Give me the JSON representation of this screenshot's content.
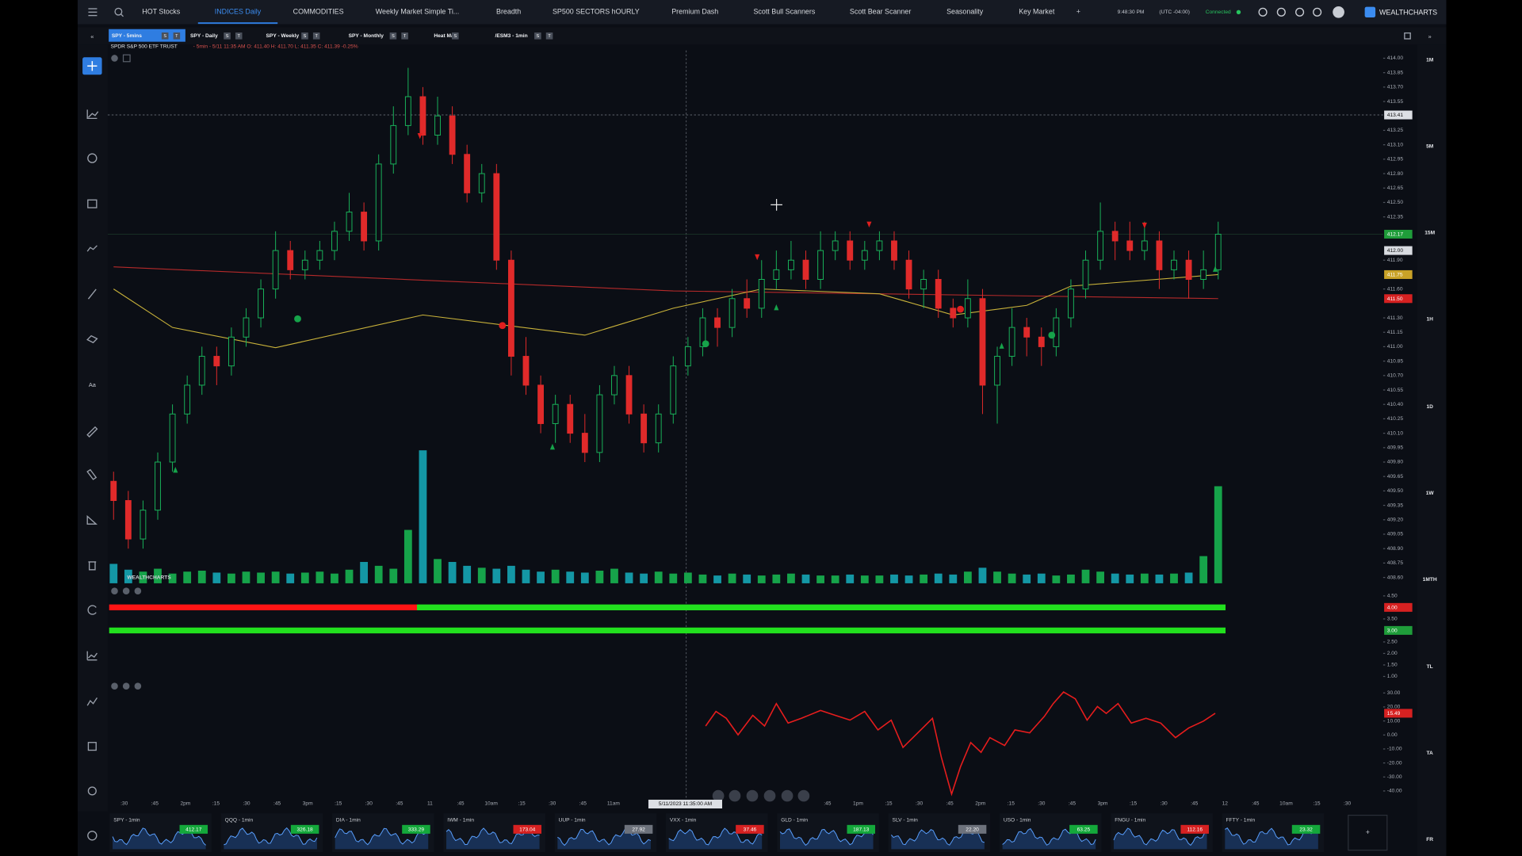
{
  "top_nav": {
    "tabs": [
      {
        "label": "HOT Stocks"
      },
      {
        "label": "INDICES Daily",
        "active": true
      },
      {
        "label": "COMMODITIES"
      },
      {
        "label": "Weekly Market Simple Ti..."
      },
      {
        "label": "Breadth"
      },
      {
        "label": "SP500 SECTORS hOURLY"
      },
      {
        "label": "Premium Dash"
      },
      {
        "label": "Scott Bull Scanners"
      },
      {
        "label": "Scott Bear Scanner"
      },
      {
        "label": "Seasonality"
      },
      {
        "label": "Key Market"
      }
    ],
    "add": "+",
    "time": "9:48:30 PM",
    "timezone": "(UTC -04:00)",
    "status": "Connected",
    "brand": "WEALTHCHARTS"
  },
  "chart_tabs": [
    {
      "label": "SPY - 5mins",
      "buttons": [
        "S",
        "T"
      ],
      "active": true
    },
    {
      "label": "SPY - Daily",
      "buttons": [
        "S",
        "T"
      ]
    },
    {
      "label": "SPY - Weekly",
      "buttons": [
        "S",
        "T"
      ]
    },
    {
      "label": "SPY - Monthly",
      "buttons": [
        "S",
        "T"
      ]
    },
    {
      "label": "Heat Map",
      "buttons": [
        "S"
      ]
    },
    {
      "label": "/ESM3 - 1min",
      "buttons": [
        "S",
        "T"
      ]
    }
  ],
  "symbol": {
    "name": "SPDR S&P 500 ETF TRUST",
    "details": "- 5min - 5/11 11:35 AM O: 411.40 H: 411.70 L: 411.35 C: 411.39 -0.25%"
  },
  "chart_data": [
    {
      "type": "candlestick",
      "ylim": [
        408.6,
        414.0
      ],
      "yticks": [
        {
          "value": 414,
          "label": "414.00"
        },
        413.85,
        {
          "value": 413.7,
          "label": "413.70"
        },
        413.55,
        413.25,
        {
          "value": 413.1,
          "label": "413.10"
        },
        412.95,
        {
          "value": 412.8,
          "label": "412.80"
        },
        412.65,
        {
          "value": 412.5,
          "label": "412.50"
        },
        412.35,
        {
          "value": 411.9,
          "label": "411.90"
        },
        {
          "value": 411.6,
          "label": "411.60"
        },
        {
          "value": 411.3,
          "label": "411.30"
        },
        411.15,
        {
          "value": 411,
          "label": "411.00"
        },
        410.85,
        {
          "value": 410.7,
          "label": "410.70"
        },
        410.55,
        {
          "value": 410.4,
          "label": "410.40"
        },
        410.25,
        {
          "value": 410.1,
          "label": "410.10"
        },
        409.95,
        {
          "value": 409.8,
          "label": "409.80"
        },
        409.65,
        {
          "value": 409.5,
          "label": "409.50"
        },
        409.35,
        {
          "value": 409.2,
          "label": "409.20"
        },
        409.05,
        {
          "value": 408.9,
          "label": "408.90"
        },
        408.75,
        {
          "value": 408.6,
          "label": "408.60"
        }
      ],
      "crosshair_price": 413.41,
      "last_price": 412.17,
      "price_badges": [
        {
          "value": 412,
          "label": "412.00",
          "color": "#d8dbe0"
        },
        {
          "value": 411.75,
          "color": "#c9a227"
        },
        {
          "value": 411.5,
          "label": "411.50",
          "color": "#d62121"
        }
      ],
      "up_color": "#19b35a",
      "down_color": "#e02a2a",
      "volume_up_color": "#16a34a",
      "volume_down_color": "#1497a5",
      "candles": [
        [
          409.6,
          409.7,
          409.2,
          409.4
        ],
        [
          409.4,
          409.5,
          408.9,
          409.0
        ],
        [
          409.0,
          409.4,
          408.9,
          409.3
        ],
        [
          409.3,
          409.9,
          409.2,
          409.8
        ],
        [
          409.8,
          410.4,
          409.7,
          410.3
        ],
        [
          410.3,
          410.7,
          410.2,
          410.6
        ],
        [
          410.6,
          411.0,
          410.5,
          410.9
        ],
        [
          410.9,
          411.0,
          410.6,
          410.8
        ],
        [
          410.8,
          411.2,
          410.7,
          411.1
        ],
        [
          411.1,
          411.4,
          411.0,
          411.3
        ],
        [
          411.3,
          411.7,
          411.2,
          411.6
        ],
        [
          411.6,
          412.2,
          411.5,
          412.0
        ],
        [
          412.0,
          412.1,
          411.7,
          411.8
        ],
        [
          411.8,
          412.0,
          411.7,
          411.9
        ],
        [
          411.9,
          412.1,
          411.8,
          412.0
        ],
        [
          412.0,
          412.3,
          411.9,
          412.2
        ],
        [
          412.2,
          412.6,
          412.1,
          412.4
        ],
        [
          412.4,
          412.5,
          412.0,
          412.1
        ],
        [
          412.1,
          413.0,
          412.0,
          412.9
        ],
        [
          412.9,
          413.5,
          412.8,
          413.3
        ],
        [
          413.3,
          413.9,
          413.2,
          413.6
        ],
        [
          413.6,
          413.7,
          413.1,
          413.2
        ],
        [
          413.2,
          413.6,
          413.1,
          413.4
        ],
        [
          413.4,
          413.5,
          412.9,
          413.0
        ],
        [
          413.0,
          413.1,
          412.5,
          412.6
        ],
        [
          412.6,
          412.9,
          412.5,
          412.8
        ],
        [
          412.8,
          412.9,
          411.8,
          411.9
        ],
        [
          411.9,
          412.0,
          410.7,
          410.9
        ],
        [
          410.9,
          411.1,
          410.5,
          410.6
        ],
        [
          410.6,
          410.7,
          410.1,
          410.2
        ],
        [
          410.2,
          410.5,
          410.0,
          410.4
        ],
        [
          410.4,
          410.5,
          410.0,
          410.1
        ],
        [
          410.1,
          410.3,
          409.8,
          409.9
        ],
        [
          409.9,
          410.6,
          409.8,
          410.5
        ],
        [
          410.5,
          410.8,
          410.4,
          410.7
        ],
        [
          410.7,
          410.8,
          410.2,
          410.3
        ],
        [
          410.3,
          410.4,
          409.9,
          410.0
        ],
        [
          410.0,
          410.4,
          409.9,
          410.3
        ],
        [
          410.3,
          410.9,
          410.2,
          410.8
        ],
        [
          410.8,
          411.1,
          410.7,
          411.0
        ],
        [
          411.0,
          411.4,
          410.9,
          411.3
        ],
        [
          411.3,
          411.4,
          411.0,
          411.2
        ],
        [
          411.2,
          411.6,
          411.1,
          411.5
        ],
        [
          411.5,
          411.7,
          411.3,
          411.4
        ],
        [
          411.4,
          411.9,
          411.3,
          411.7
        ],
        [
          411.7,
          412.0,
          411.6,
          411.8
        ],
        [
          411.8,
          412.1,
          411.7,
          411.9
        ],
        [
          411.9,
          412.0,
          411.6,
          411.7
        ],
        [
          411.7,
          412.2,
          411.6,
          412.0
        ],
        [
          412.0,
          412.2,
          411.9,
          412.1
        ],
        [
          412.1,
          412.2,
          411.8,
          411.9
        ],
        [
          411.9,
          412.1,
          411.8,
          412.0
        ],
        [
          412.0,
          412.2,
          411.9,
          412.1
        ],
        [
          412.1,
          412.2,
          411.8,
          411.9
        ],
        [
          411.9,
          412.0,
          411.5,
          411.6
        ],
        [
          411.6,
          411.8,
          411.4,
          411.7
        ],
        [
          411.7,
          411.8,
          411.3,
          411.4
        ],
        [
          411.4,
          411.5,
          411.2,
          411.3
        ],
        [
          411.3,
          411.7,
          411.2,
          411.5
        ],
        [
          411.5,
          411.6,
          410.3,
          410.6
        ],
        [
          410.6,
          411.0,
          410.2,
          410.9
        ],
        [
          410.9,
          411.4,
          410.8,
          411.2
        ],
        [
          411.2,
          411.3,
          410.9,
          411.1
        ],
        [
          411.1,
          411.2,
          410.8,
          411.0
        ],
        [
          411.0,
          411.4,
          410.9,
          411.3
        ],
        [
          411.3,
          411.7,
          411.2,
          411.6
        ],
        [
          411.6,
          412.0,
          411.5,
          411.9
        ],
        [
          411.9,
          412.5,
          411.8,
          412.2
        ],
        [
          412.2,
          412.3,
          411.9,
          412.1
        ],
        [
          412.1,
          412.3,
          411.9,
          412.0
        ],
        [
          412.0,
          412.3,
          411.9,
          412.1
        ],
        [
          412.1,
          412.2,
          411.6,
          411.8
        ],
        [
          411.8,
          412.0,
          411.7,
          411.9
        ],
        [
          411.9,
          412.0,
          411.5,
          411.7
        ],
        [
          411.7,
          412.0,
          411.6,
          411.8
        ],
        [
          411.8,
          412.3,
          411.7,
          412.17
        ]
      ],
      "volume": [
        20,
        14,
        12,
        15,
        10,
        12,
        13,
        11,
        10,
        12,
        11,
        12,
        10,
        11,
        12,
        10,
        14,
        22,
        18,
        15,
        55,
        137,
        25,
        22,
        18,
        16,
        15,
        18,
        14,
        12,
        14,
        12,
        11,
        13,
        15,
        11,
        10,
        12,
        10,
        11,
        9,
        8,
        10,
        9,
        8,
        9,
        10,
        9,
        8,
        8,
        9,
        8,
        8,
        9,
        8,
        9,
        10,
        9,
        12,
        16,
        12,
        10,
        9,
        10,
        8,
        9,
        14,
        12,
        10,
        9,
        10,
        9,
        10,
        11,
        28,
        100
      ],
      "ma_fast": {
        "color": "#c9b23a",
        "x": [
          0,
          4,
          11,
          21,
          32,
          38,
          44,
          52,
          57,
          62,
          65,
          75
        ],
        "values": [
          411.6,
          411.2,
          410.99,
          411.33,
          411.12,
          411.4,
          411.6,
          411.55,
          411.33,
          411.43,
          411.63,
          411.75
        ]
      },
      "ma_slow": {
        "color": "#b52a2a",
        "x": [
          0,
          38,
          75
        ],
        "values": [
          411.83,
          411.58,
          411.5
        ]
      },
      "dots_up": {
        "color": "#16a34a",
        "x": [
          12.5,
          40.2,
          63.7
        ],
        "values": [
          411.29,
          411.03,
          411.12
        ]
      },
      "dots_down": {
        "color": "#e01f1f",
        "x": [
          26.4,
          57.5
        ],
        "values": [
          411.22,
          411.39
        ]
      },
      "arrows_up": {
        "color": "#16a34a",
        "x": [
          4.2,
          29.8,
          45.0,
          60.3,
          74.8
        ],
        "values": [
          409.72,
          409.96,
          411.41,
          411.01,
          411.81
        ]
      },
      "arrows_down": {
        "color": "#e01f1f",
        "x": [
          20.8,
          43.7,
          51.3,
          70.0
        ],
        "values": [
          413.19,
          411.93,
          412.27,
          412.26
        ]
      }
    },
    {
      "type": "strip",
      "ylim": [
        1,
        4.5
      ],
      "yticks": [
        {
          "value": 4.5,
          "label": "4.50"
        },
        {
          "value": 3.5,
          "label": "3.50"
        },
        {
          "value": 2.5,
          "label": "2.50"
        },
        {
          "value": 2,
          "label": "2.00"
        },
        {
          "value": 1.5,
          "label": "1.50"
        },
        {
          "value": 1,
          "label": "1.00"
        }
      ],
      "badges": [
        {
          "value": 4,
          "label": "4.00",
          "color": "#d62121"
        },
        {
          "value": 3,
          "label": "3.00",
          "color": "#1f9d3a"
        }
      ],
      "strips": [
        {
          "color": "#ff1414",
          "x": [
            -0.3,
            20.6
          ],
          "values": [
            4,
            4
          ]
        },
        {
          "color": "#22e01e",
          "x": [
            20.6,
            75.5
          ],
          "values": [
            4,
            4
          ]
        },
        {
          "color": "#22e01e",
          "x": [
            -0.3,
            75.5
          ],
          "values": [
            3,
            3
          ]
        }
      ]
    },
    {
      "type": "line",
      "ylim": [
        -40,
        30
      ],
      "color": "#e61d1d",
      "yticks": [
        {
          "value": 30,
          "label": "30.00"
        },
        {
          "value": 20,
          "label": "20.00"
        },
        {
          "value": 10,
          "label": "10.00"
        },
        {
          "value": 0,
          "label": "0.00"
        },
        {
          "value": -10,
          "label": "-10.00"
        },
        {
          "value": -20,
          "label": "-20.00"
        },
        {
          "value": -30,
          "label": "-30.00"
        },
        {
          "value": -40,
          "label": "-40.00"
        }
      ],
      "last_value": 15.49,
      "x": [
        40.2,
        40.9,
        41.6,
        42.4,
        43.4,
        44.2,
        45.0,
        45.8,
        46.7,
        48.0,
        49.0,
        50.0,
        51.0,
        51.9,
        52.8,
        53.6,
        54.6,
        55.6,
        56.2,
        56.9,
        57.5,
        58.2,
        58.9,
        59.5,
        60.5,
        61.2,
        62.2,
        63.2,
        63.8,
        64.5,
        65.3,
        66.1,
        66.8,
        67.4,
        68.2,
        69.1,
        70.1,
        71.1,
        72.1,
        73.0,
        74.0,
        74.8
      ],
      "values": [
        6.4,
        16.8,
        11.9,
        0.1,
        14.0,
        6.4,
        22.4,
        8.5,
        11.9,
        17.5,
        14.0,
        10.6,
        16.8,
        3.6,
        10.6,
        -8.9,
        1.5,
        11.9,
        -15.8,
        -42.2,
        -22.8,
        -5.4,
        -12.4,
        -1.9,
        -7.5,
        3.6,
        1.5,
        13.3,
        22.4,
        30.7,
        25.8,
        10.6,
        20.3,
        15.4,
        22.4,
        8.5,
        11.9,
        8.5,
        -1.9,
        5.0,
        9.9,
        15.49
      ]
    }
  ],
  "time_axis": {
    "labels": [
      ":30",
      ":45",
      "2pm",
      ":15",
      ":30",
      ":45",
      "3pm",
      ":15",
      ":30",
      ":45",
      "11",
      ":45",
      "10am",
      ":15",
      ":30",
      ":45",
      "11am",
      null,
      null,
      null,
      null,
      null,
      null,
      ":45",
      "1pm",
      ":15",
      ":30",
      ":45",
      "2pm",
      ":15",
      ":30",
      ":45",
      "3pm",
      ":15",
      ":30",
      ":45",
      "12",
      ":45",
      "10am",
      ":15",
      ":30"
    ],
    "crosshair_label": "5/11/2023 11:35:00 AM"
  },
  "timeframes": [
    "1M",
    "5M",
    "15M",
    "1H",
    "1D",
    "1W",
    "1MTH",
    "TL",
    "TA",
    "FR"
  ],
  "toolbar": {
    "text_tool": "Aa"
  },
  "watchlist": [
    {
      "label": "SPY - 1min",
      "price": 412.17,
      "trend": "up"
    },
    {
      "label": "QQQ - 1min",
      "price": 326.18,
      "trend": "up"
    },
    {
      "label": "DIA - 1min",
      "price": 333.29,
      "trend": "up"
    },
    {
      "label": "IWM - 1min",
      "price": 173.04,
      "trend": "down"
    },
    {
      "label": "UUP - 1min",
      "price": 27.92,
      "trend": "flat"
    },
    {
      "label": "VXX - 1min",
      "price": 37.46,
      "trend": "down"
    },
    {
      "label": "GLD - 1min",
      "price": 187.13,
      "trend": "up"
    },
    {
      "label": "SLV - 1min",
      "price": {
        "value": 22.2,
        "label": "22.20"
      },
      "trend": "flat"
    },
    {
      "label": "USO - 1min",
      "price": 63.25,
      "trend": "up"
    },
    {
      "label": "FNGU - 1min",
      "price": 112.16,
      "trend": "down"
    },
    {
      "label": "FFTY - 1min",
      "price": 23.32,
      "trend": "up"
    }
  ],
  "watchlist_add": "+"
}
